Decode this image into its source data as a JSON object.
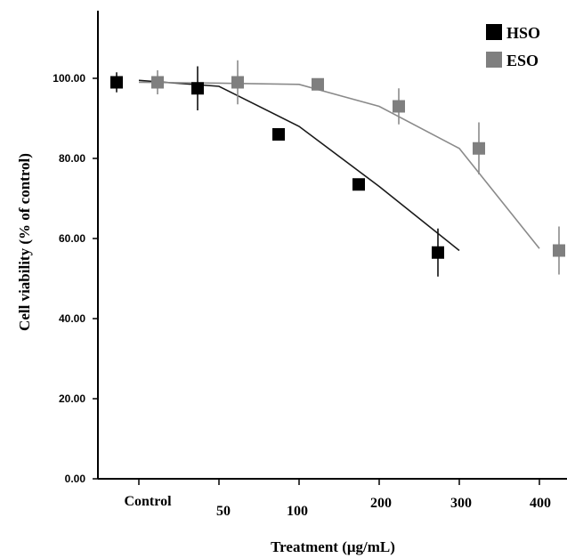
{
  "chart_data": {
    "type": "line",
    "xlabel": "Treatment (μg/mL)",
    "ylabel": "Cell viability (% of control)",
    "ylim": [
      0,
      115
    ],
    "y_ticks": [
      "0.00",
      "20.00",
      "40.00",
      "60.00",
      "80.00",
      "100.00"
    ],
    "y_tick_values": [
      0,
      20,
      40,
      60,
      80,
      100
    ],
    "categories": [
      "Control",
      "50",
      "100",
      "200",
      "300",
      "400"
    ],
    "grid": false,
    "legend_position": "top-right",
    "series": [
      {
        "name": "HSO",
        "color": "#000000",
        "line_color": "#1a1a1a",
        "points": [
          {
            "x": "Control",
            "y": 99.0,
            "err": 2.5
          },
          {
            "x": "50",
            "y": 97.5,
            "err": 5.5
          },
          {
            "x": "100",
            "y": 86.0,
            "err": 0
          },
          {
            "x": "200",
            "y": 73.5,
            "err": 0
          },
          {
            "x": "300",
            "y": 56.5,
            "err": 6.0
          }
        ],
        "fit": [
          [
            0,
            99.5
          ],
          [
            1,
            98.0
          ],
          [
            2,
            88.0
          ],
          [
            3,
            73.0
          ],
          [
            4,
            57.0
          ]
        ]
      },
      {
        "name": "ESO",
        "color": "#7f7f7f",
        "line_color": "#8a8a8a",
        "points": [
          {
            "x": "Control",
            "y": 99.0,
            "err": 3.0
          },
          {
            "x": "50",
            "y": 99.0,
            "err": 5.5
          },
          {
            "x": "100",
            "y": 98.5,
            "err": 0
          },
          {
            "x": "200",
            "y": 93.0,
            "err": 4.5
          },
          {
            "x": "300",
            "y": 82.5,
            "err": 6.5
          },
          {
            "x": "400",
            "y": 57.0,
            "err": 6.0
          }
        ],
        "fit": [
          [
            0,
            99.0
          ],
          [
            1,
            98.8
          ],
          [
            2,
            98.5
          ],
          [
            3,
            93.0
          ],
          [
            4,
            82.5
          ],
          [
            5,
            57.5
          ]
        ]
      }
    ]
  }
}
